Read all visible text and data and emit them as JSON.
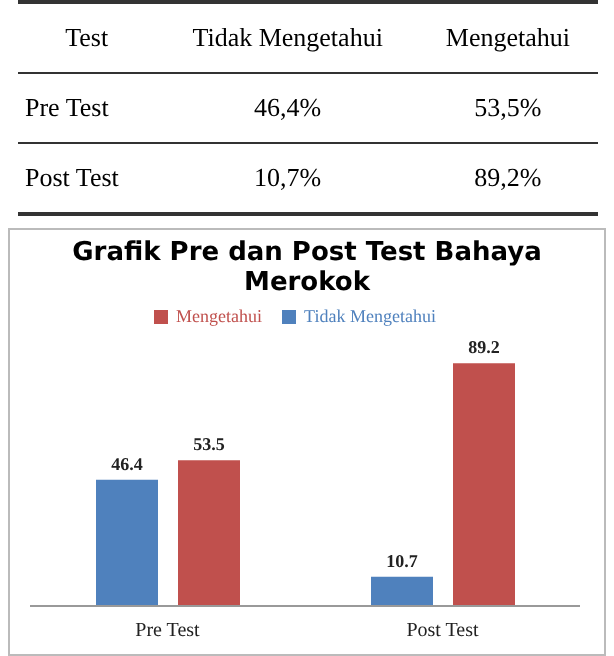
{
  "chart_data": [
    {
      "type": "other",
      "xlabel": "Test",
      "categories": [
        "Pre Test",
        "Post Test"
      ],
      "series": [
        {
          "name": "Tidak Mengetahui",
          "values": [
            46.4,
            10.7
          ],
          "value_labels": [
            "46,4%",
            "10,7%"
          ]
        },
        {
          "name": "Mengetahui",
          "values": [
            53.5,
            89.2
          ],
          "value_labels": [
            "53,5%",
            "89,2%"
          ]
        }
      ]
    },
    {
      "type": "bar",
      "title": "Grafik Pre dan Post Test Bahaya Merokok",
      "categories": [
        "Pre Test",
        "Post Test"
      ],
      "series": [
        {
          "name": "Tidak Mengetahui",
          "color": "#4f81bd",
          "values": [
            46.4,
            10.7
          ]
        },
        {
          "name": "Mengetahui",
          "color": "#c0504d",
          "values": [
            53.5,
            89.2
          ]
        }
      ],
      "data_labels": true,
      "legend": "top",
      "grid": false
    }
  ]
}
